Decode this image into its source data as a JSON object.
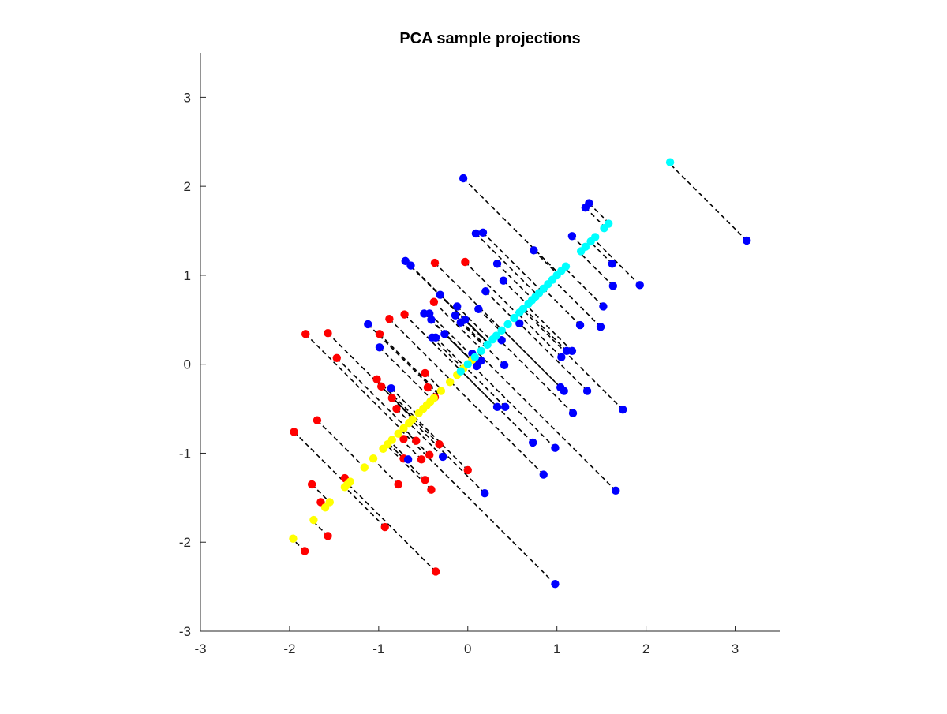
{
  "chart_data": {
    "type": "scatter",
    "title": "PCA sample projections",
    "xlabel": "",
    "ylabel": "",
    "xlim": [
      -3,
      3.5
    ],
    "ylim": [
      -3,
      3.5
    ],
    "xticks": [
      -3,
      -2,
      -1,
      0,
      1,
      2,
      3
    ],
    "yticks": [
      -3,
      -2,
      -1,
      0,
      1,
      2,
      3
    ],
    "grid": false,
    "legend": "none",
    "colors": {
      "class_a": "#ff0000",
      "class_b": "#0000ff",
      "class_a_projection": "#ffff00",
      "class_b_projection": "#00ffff",
      "projection_line": "#000000",
      "axis": "#262626"
    },
    "series": [
      {
        "color": "class_a",
        "x": [
          -1.82,
          -1.57,
          -1.47,
          -1.95,
          -1.69,
          -1.75,
          -1.65,
          -1.57,
          -1.83,
          -1.38,
          -0.93,
          -0.88,
          -0.71,
          -0.38,
          -0.99,
          -1.02,
          -0.97,
          -0.85,
          -0.8,
          -0.72,
          -0.58,
          -0.48,
          -0.45,
          -0.37,
          -0.52,
          -0.48,
          -0.72,
          -0.43,
          -0.32,
          -0.41,
          -0.78,
          -0.36,
          0.0,
          -0.37,
          -0.03
        ],
        "y": [
          0.34,
          0.35,
          0.07,
          -0.76,
          -0.63,
          -1.35,
          -1.55,
          -1.93,
          -2.1,
          -1.28,
          -1.83,
          0.51,
          0.56,
          0.7,
          0.34,
          -0.17,
          -0.25,
          -0.38,
          -0.5,
          -0.84,
          -0.86,
          -0.1,
          -0.26,
          -0.37,
          -1.07,
          -1.3,
          -1.06,
          -1.02,
          -0.9,
          -1.41,
          -1.35,
          -2.33,
          -1.19,
          1.14,
          1.15
        ]
      },
      {
        "color": "class_b",
        "x": [
          -0.05,
          0.09,
          0.17,
          -0.7,
          -0.64,
          0.33,
          0.4,
          0.74,
          1.17,
          1.32,
          1.36,
          1.62,
          1.93,
          1.63,
          1.52,
          1.49,
          1.26,
          1.11,
          1.05,
          -1.12,
          -0.99,
          -0.49,
          -0.43,
          -0.41,
          -0.4,
          -0.36,
          -0.31,
          -0.26,
          -0.12,
          -0.14,
          -0.08,
          -0.03,
          0.07,
          0.12,
          0.2,
          0.38,
          0.41,
          0.33,
          0.42,
          0.58,
          0.73,
          1.04,
          1.08,
          1.18,
          1.34,
          1.74,
          0.98,
          0.85,
          0.19,
          -0.28,
          -0.67,
          -0.86,
          0.98,
          1.66,
          3.13,
          1.17,
          0.1,
          0.05,
          0.15
        ],
        "y": [
          2.09,
          1.47,
          1.48,
          1.16,
          1.11,
          1.13,
          0.94,
          1.28,
          1.44,
          1.76,
          1.81,
          1.13,
          0.89,
          0.88,
          0.65,
          0.42,
          0.44,
          0.15,
          0.08,
          0.45,
          0.19,
          0.57,
          0.57,
          0.5,
          0.3,
          0.3,
          0.78,
          0.34,
          0.65,
          0.55,
          0.47,
          0.5,
          0.04,
          0.62,
          0.82,
          0.27,
          -0.01,
          -0.48,
          -0.48,
          0.46,
          -0.88,
          -0.26,
          -0.3,
          -0.55,
          -0.3,
          -0.51,
          -0.94,
          -1.24,
          -1.45,
          -1.04,
          -1.07,
          -0.27,
          -2.47,
          -1.42,
          1.39,
          0.15,
          -0.02,
          0.12,
          0.04
        ]
      },
      {
        "color": "class_a_projection",
        "x": [
          -1.96,
          -1.73,
          -1.6,
          -1.55,
          -1.38,
          -1.35,
          -1.32,
          -1.16,
          -1.06,
          -0.95,
          -0.9,
          -0.85,
          -0.78,
          -0.72,
          -0.66,
          -0.62,
          -0.55,
          -0.5,
          -0.46,
          -0.42,
          -0.38,
          -0.3,
          -0.2,
          -0.12,
          -0.05,
          0.05
        ],
        "y": [
          -1.96,
          -1.75,
          -1.61,
          -1.55,
          -1.38,
          -1.35,
          -1.32,
          -1.16,
          -1.06,
          -0.95,
          -0.9,
          -0.85,
          -0.78,
          -0.72,
          -0.66,
          -0.62,
          -0.55,
          -0.5,
          -0.46,
          -0.42,
          -0.38,
          -0.3,
          -0.2,
          -0.12,
          -0.05,
          0.05
        ]
      },
      {
        "color": "class_b_projection",
        "x": [
          -0.08,
          0.0,
          0.08,
          0.15,
          0.22,
          0.28,
          0.32,
          0.38,
          0.45,
          0.52,
          0.58,
          0.62,
          0.68,
          0.72,
          0.76,
          0.8,
          0.85,
          0.9,
          0.95,
          1.0,
          1.05,
          1.1,
          1.27,
          1.32,
          1.38,
          1.43,
          1.53,
          1.58,
          2.27
        ],
        "y": [
          -0.08,
          0.0,
          0.08,
          0.15,
          0.22,
          0.28,
          0.32,
          0.38,
          0.45,
          0.52,
          0.58,
          0.62,
          0.68,
          0.72,
          0.76,
          0.8,
          0.85,
          0.9,
          0.95,
          1.0,
          1.05,
          1.1,
          1.27,
          1.32,
          1.38,
          1.43,
          1.53,
          1.58,
          2.27
        ]
      }
    ]
  }
}
